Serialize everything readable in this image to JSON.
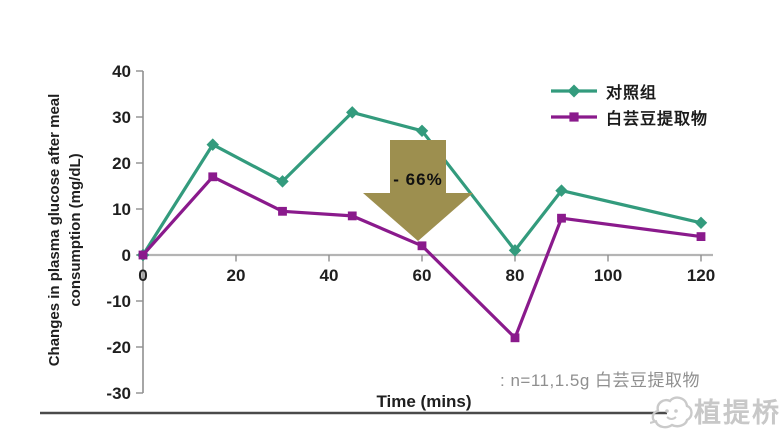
{
  "labels": {
    "y_axis_line1": "Changes in plasma glucose after meal",
    "y_axis_line2": "consumption (mg/dL)"
  },
  "chart_data": {
    "type": "line",
    "x": [
      0,
      15,
      30,
      45,
      60,
      80,
      90,
      120
    ],
    "series": [
      {
        "name": "对照组",
        "color": "#339b7d",
        "marker": "diamond",
        "values": [
          0,
          24,
          16,
          31,
          27,
          1,
          14,
          7
        ]
      },
      {
        "name": "白芸豆提取物",
        "color": "#8a1a8c",
        "marker": "square",
        "values": [
          0,
          17,
          9.5,
          8.5,
          2,
          -18,
          8,
          4
        ]
      }
    ],
    "title": "",
    "xlabel": "Time (mins)",
    "ylabel": "Changes in plasma glucose after meal consumption (mg/dL)",
    "xlim": [
      0,
      120
    ],
    "ylim": [
      -30,
      40
    ],
    "x_ticks": [
      0,
      20,
      40,
      60,
      80,
      100,
      120
    ],
    "y_ticks": [
      40,
      30,
      20,
      10,
      0,
      -10,
      -20,
      -30
    ],
    "grid": false,
    "legend_position": "top-right"
  },
  "annotation": {
    "label": "- 66%",
    "arrow_color": "#9d8f4f",
    "points_at_x": 60
  },
  "footnote": {
    "text": ": n=11,1.5g 白芸豆提取物"
  },
  "watermark": {
    "text": "植提桥",
    "color": "#c8c8c8"
  },
  "axis_style": {
    "axis_color": "#8f8f8f",
    "zero_line_color": "#b4b4b4",
    "bottom_rule_color": "#4a4a4a"
  }
}
